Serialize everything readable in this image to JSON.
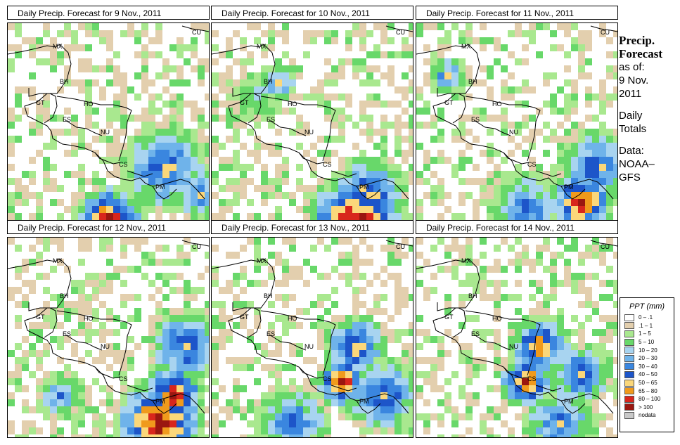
{
  "panels": [
    {
      "title": "Daily Precip. Forecast for  9 Nov., 2011"
    },
    {
      "title": "Daily Precip. Forecast for  10 Nov., 2011"
    },
    {
      "title": "Daily Precip. Forecast for  11 Nov., 2011"
    },
    {
      "title": "Daily Precip. Forecast for  12 Nov., 2011"
    },
    {
      "title": "Daily Precip. Forecast for  13 Nov., 2011"
    },
    {
      "title": "Daily Precip. Forecast for  14 Nov., 2011"
    }
  ],
  "country_labels": [
    "MX",
    "BH",
    "GT",
    "HO",
    "ES",
    "NU",
    "CS",
    "PM",
    "CU"
  ],
  "side": {
    "title_line1": "Precip.",
    "title_line2": "Forecast",
    "asof_label": "as of:",
    "asof_date1": "9 Nov.",
    "asof_date2": "2011",
    "daily1": "Daily",
    "daily2": "Totals",
    "data1": "Data:",
    "data2": "NOAA–",
    "data3": "GFS"
  },
  "legend": {
    "title": "PPT (mm)",
    "entries": [
      {
        "label": "0 – .1",
        "color": "#ffffff"
      },
      {
        "label": ".1 – 1",
        "color": "#e3cfae"
      },
      {
        "label": "1 – 5",
        "color": "#a9e88f"
      },
      {
        "label": "5 – 10",
        "color": "#68d86a"
      },
      {
        "label": "10 – 20",
        "color": "#a8d4f0"
      },
      {
        "label": "20 – 30",
        "color": "#6fb3ea"
      },
      {
        "label": "30 – 40",
        "color": "#3a86df"
      },
      {
        "label": "40 – 50",
        "color": "#1d55c9"
      },
      {
        "label": "50 – 65",
        "color": "#fbd77a"
      },
      {
        "label": "65 – 80",
        "color": "#f09a1c"
      },
      {
        "label": "80 – 100",
        "color": "#d8261c"
      },
      {
        "label": "> 100",
        "color": "#9a1710"
      },
      {
        "label": "nodata",
        "color": "#c8c8c8"
      }
    ]
  }
}
